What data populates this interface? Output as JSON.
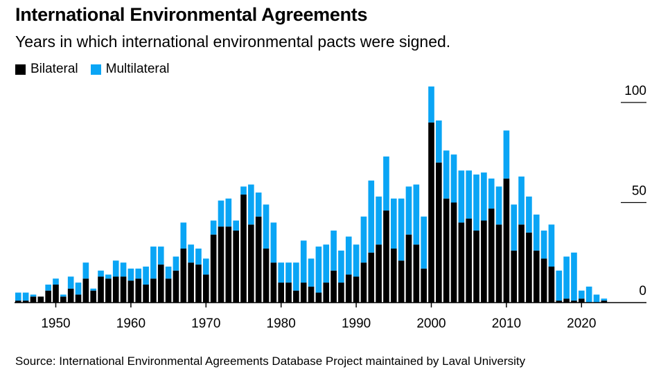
{
  "title": "International Environmental Agreements",
  "subtitle": "Years in which international environmental pacts were signed.",
  "source": "Source: International Environmental Agreements Database Project maintained by Laval University",
  "colors": {
    "bilateral": "#000000",
    "multilateral": "#0aa5f5",
    "axis": "#000000"
  },
  "legend": [
    {
      "name": "Bilateral",
      "color": "#000000"
    },
    {
      "name": "Multilateral",
      "color": "#0aa5f5"
    }
  ],
  "chart_data": {
    "type": "bar",
    "stacked": true,
    "title": "International Environmental Agreements",
    "subtitle": "Years in which international environmental pacts were signed.",
    "xlabel": "",
    "ylabel": "",
    "ylim": [
      0,
      100
    ],
    "yticks": [
      0,
      50,
      100
    ],
    "y_axis_position": "right",
    "xticks": [
      1950,
      1960,
      1970,
      1980,
      1990,
      2000,
      2010,
      2020
    ],
    "legend_position": "top-left",
    "grid": false,
    "categories": [
      1945,
      1946,
      1947,
      1948,
      1949,
      1950,
      1951,
      1952,
      1953,
      1954,
      1955,
      1956,
      1957,
      1958,
      1959,
      1960,
      1961,
      1962,
      1963,
      1964,
      1965,
      1966,
      1967,
      1968,
      1969,
      1970,
      1971,
      1972,
      1973,
      1974,
      1975,
      1976,
      1977,
      1978,
      1979,
      1980,
      1981,
      1982,
      1983,
      1984,
      1985,
      1986,
      1987,
      1988,
      1989,
      1990,
      1991,
      1992,
      1993,
      1994,
      1995,
      1996,
      1997,
      1998,
      1999,
      2000,
      2001,
      2002,
      2003,
      2004,
      2005,
      2006,
      2007,
      2008,
      2009,
      2010,
      2011,
      2012,
      2013,
      2014,
      2015,
      2016,
      2017,
      2018,
      2019,
      2020,
      2021,
      2022,
      2023
    ],
    "series": [
      {
        "name": "Bilateral",
        "values": [
          1,
          1,
          3,
          3,
          6,
          9,
          3,
          7,
          4,
          12,
          6,
          13,
          12,
          13,
          13,
          11,
          12,
          9,
          12,
          19,
          12,
          16,
          27,
          20,
          19,
          14,
          34,
          38,
          38,
          36,
          54,
          39,
          43,
          27,
          20,
          10,
          10,
          6,
          10,
          8,
          5,
          10,
          16,
          10,
          14,
          13,
          20,
          25,
          29,
          46,
          27,
          21,
          34,
          29,
          17,
          90,
          70,
          52,
          50,
          40,
          42,
          36,
          41,
          47,
          39,
          62,
          26,
          39,
          35,
          26,
          22,
          18,
          1,
          2,
          1,
          2,
          0,
          0,
          1
        ]
      },
      {
        "name": "Multilateral",
        "values": [
          4,
          4,
          1,
          0,
          3,
          3,
          1,
          6,
          6,
          8,
          1,
          3,
          2,
          8,
          7,
          6,
          5,
          9,
          16,
          9,
          6,
          7,
          13,
          9,
          8,
          8,
          7,
          13,
          14,
          5,
          4,
          20,
          12,
          22,
          20,
          10,
          10,
          14,
          21,
          14,
          23,
          19,
          20,
          16,
          19,
          16,
          23,
          36,
          24,
          27,
          25,
          31,
          24,
          30,
          26,
          18,
          21,
          24,
          24,
          26,
          24,
          28,
          24,
          15,
          19,
          24,
          23,
          24,
          18,
          18,
          14,
          21,
          15,
          21,
          24,
          4,
          8,
          4,
          1
        ]
      }
    ]
  }
}
